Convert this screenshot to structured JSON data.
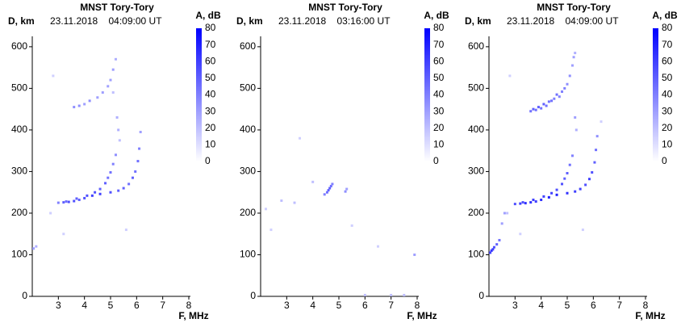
{
  "chart_data": [
    {
      "type": "scatter",
      "title": "MNST Tory-Tory",
      "y_label": "D, km",
      "subtitle": "23.11.2018    04:09:00 UT",
      "x_label": "F, MHz",
      "colorbar_label": "A, dB",
      "clim": [
        0,
        80
      ],
      "colorbar_ticks": [
        0,
        10,
        20,
        30,
        40,
        50,
        60,
        70,
        80
      ],
      "cmap": [
        "#ffffff",
        "#0000ff"
      ],
      "xlim": [
        2,
        8
      ],
      "xticks": [
        3,
        4,
        5,
        6,
        7,
        8
      ],
      "ylim": [
        0,
        625
      ],
      "yticks": [
        0,
        100,
        200,
        300,
        400,
        500,
        600
      ],
      "x": [
        2.05,
        2.15,
        3.0,
        3.2,
        3.4,
        3.6,
        3.8,
        4.0,
        4.3,
        4.6,
        5.0,
        5.3,
        5.5,
        5.7,
        5.85,
        5.95,
        6.05,
        6.1,
        6.15,
        3.3,
        3.7,
        4.1,
        4.4,
        4.6,
        4.8,
        4.9,
        5.0,
        5.1,
        5.2,
        3.6,
        3.8,
        4.0,
        4.2,
        4.5,
        4.7,
        4.9,
        5.0,
        5.1,
        5.2,
        5.25,
        5.3,
        5.35,
        2.8,
        2.7,
        5.6,
        3.2,
        5.1
      ],
      "values": [
        115,
        120,
        225,
        226,
        227,
        229,
        232,
        236,
        242,
        246,
        250,
        254,
        260,
        270,
        285,
        300,
        325,
        355,
        395,
        228,
        235,
        242,
        250,
        258,
        272,
        285,
        298,
        318,
        340,
        455,
        458,
        462,
        470,
        478,
        490,
        505,
        520,
        545,
        570,
        430,
        400,
        375,
        530,
        200,
        160,
        150,
        490
      ],
      "amplitude": [
        30,
        25,
        40,
        50,
        55,
        55,
        50,
        55,
        60,
        60,
        55,
        50,
        50,
        45,
        50,
        45,
        45,
        40,
        30,
        45,
        50,
        55,
        55,
        50,
        50,
        45,
        45,
        40,
        35,
        35,
        35,
        30,
        35,
        30,
        30,
        30,
        30,
        30,
        25,
        25,
        25,
        20,
        15,
        15,
        15,
        15,
        20
      ]
    },
    {
      "type": "scatter",
      "title": "MNST Tory-Tory",
      "y_label": "D, km",
      "subtitle": "23.11.2018    03:16:00 UT",
      "x_label": "F, MHz",
      "colorbar_label": "A, dB",
      "clim": [
        0,
        80
      ],
      "colorbar_ticks": [
        0,
        10,
        20,
        30,
        40,
        50,
        60,
        70,
        80
      ],
      "cmap": [
        "#ffffff",
        "#0000ff"
      ],
      "xlim": [
        2,
        8
      ],
      "xticks": [
        3,
        4,
        5,
        6,
        7,
        8
      ],
      "ylim": [
        0,
        625
      ],
      "yticks": [
        0,
        100,
        200,
        300,
        400,
        500,
        600
      ],
      "x": [
        4.45,
        4.55,
        4.6,
        4.65,
        4.7,
        4.75,
        5.25,
        5.3,
        2.8,
        3.3,
        7.9,
        4.0,
        5.5,
        6.0,
        7.0,
        7.5,
        3.5,
        6.5,
        2.4,
        2.2
      ],
      "values": [
        245,
        250,
        255,
        260,
        265,
        270,
        252,
        258,
        230,
        225,
        100,
        275,
        170,
        3,
        3,
        3,
        380,
        120,
        160,
        210
      ],
      "amplitude": [
        40,
        45,
        50,
        50,
        45,
        40,
        35,
        30,
        20,
        20,
        30,
        20,
        15,
        20,
        20,
        20,
        15,
        15,
        15,
        15
      ]
    },
    {
      "type": "scatter",
      "title": "MNST Tory-Tory",
      "y_label": "D, km",
      "subtitle": "23.11.2018    04:09:00 UT",
      "x_label": "F, MHz",
      "colorbar_label": "A, dB",
      "clim": [
        0,
        80
      ],
      "colorbar_ticks": [
        0,
        10,
        20,
        30,
        40,
        50,
        60,
        70,
        80
      ],
      "cmap": [
        "#ffffff",
        "#0000ff"
      ],
      "xlim": [
        2,
        8
      ],
      "xticks": [
        3,
        4,
        5,
        6,
        7,
        8
      ],
      "ylim": [
        0,
        625
      ],
      "yticks": [
        0,
        100,
        200,
        300,
        400,
        500,
        600
      ],
      "x": [
        2.05,
        2.1,
        2.15,
        2.2,
        2.3,
        2.4,
        2.5,
        2.6,
        3.0,
        3.2,
        3.4,
        3.6,
        3.8,
        4.0,
        4.3,
        4.6,
        5.0,
        5.3,
        5.5,
        5.7,
        5.85,
        5.95,
        6.05,
        6.1,
        6.15,
        3.3,
        3.7,
        4.1,
        4.4,
        4.6,
        4.8,
        4.9,
        5.0,
        5.1,
        5.2,
        3.6,
        3.7,
        3.8,
        3.9,
        4.0,
        4.1,
        4.2,
        4.3,
        4.4,
        4.5,
        4.6,
        4.7,
        4.8,
        4.9,
        5.0,
        5.1,
        5.2,
        5.25,
        5.3,
        5.3,
        5.35,
        2.8,
        2.7,
        5.6,
        3.2,
        6.3
      ],
      "values": [
        105,
        110,
        113,
        118,
        125,
        135,
        175,
        200,
        222,
        223,
        224,
        226,
        228,
        232,
        238,
        244,
        248,
        252,
        258,
        268,
        282,
        298,
        322,
        352,
        385,
        226,
        232,
        240,
        248,
        256,
        270,
        283,
        296,
        316,
        338,
        445,
        450,
        448,
        455,
        452,
        462,
        458,
        468,
        470,
        475,
        485,
        480,
        492,
        500,
        510,
        530,
        555,
        575,
        585,
        430,
        400,
        530,
        200,
        160,
        150,
        420
      ],
      "amplitude": [
        60,
        65,
        60,
        55,
        50,
        45,
        30,
        30,
        55,
        60,
        65,
        65,
        60,
        65,
        70,
        70,
        65,
        60,
        60,
        55,
        60,
        55,
        50,
        45,
        35,
        55,
        60,
        60,
        60,
        55,
        55,
        50,
        50,
        45,
        40,
        45,
        50,
        45,
        50,
        45,
        50,
        45,
        45,
        45,
        40,
        45,
        40,
        40,
        40,
        35,
        35,
        30,
        30,
        25,
        30,
        25,
        15,
        20,
        15,
        15,
        15
      ]
    }
  ]
}
